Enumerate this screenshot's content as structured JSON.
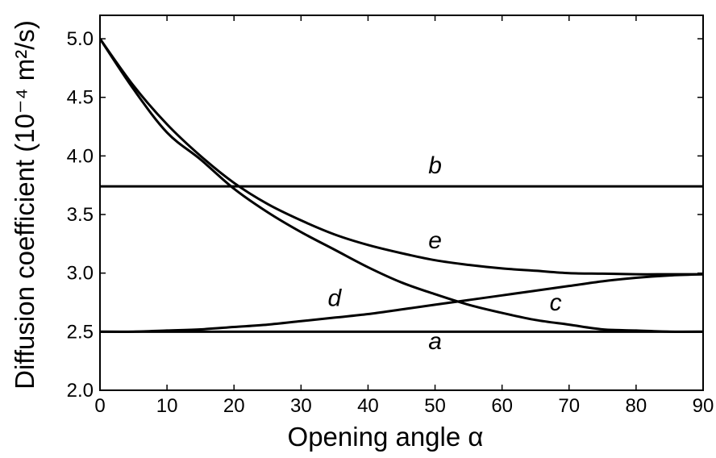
{
  "chart_data": {
    "type": "line",
    "xlabel": "Opening angle α",
    "ylabel": "Diffusion coefficient (10⁻⁴ m²/s)",
    "xlim": [
      0,
      90
    ],
    "ylim": [
      2.0,
      5.2
    ],
    "xticks": [
      0,
      10,
      20,
      30,
      40,
      50,
      60,
      70,
      80,
      90
    ],
    "xtick_labels": [
      "0",
      "10",
      "20",
      "30",
      "40",
      "50",
      "60",
      "70",
      "80",
      "90"
    ],
    "yticks": [
      2.0,
      2.5,
      3.0,
      3.5,
      4.0,
      4.5,
      5.0
    ],
    "ytick_labels": [
      "2.0",
      "2.5",
      "3.0",
      "3.5",
      "4.0",
      "4.5",
      "5.0"
    ],
    "grid": false,
    "legend": "none",
    "series": [
      {
        "name": "a",
        "label_at": [
          50,
          2.35
        ],
        "x": [
          0,
          90
        ],
        "y": [
          2.5,
          2.5
        ]
      },
      {
        "name": "b",
        "label_at": [
          50,
          3.85
        ],
        "x": [
          0,
          90
        ],
        "y": [
          3.74,
          3.74
        ]
      },
      {
        "name": "c",
        "label_at": [
          68,
          2.68
        ],
        "x": [
          0,
          5,
          10,
          15,
          20,
          25,
          30,
          35,
          40,
          45,
          50,
          55,
          60,
          65,
          70,
          75,
          80,
          85,
          90
        ],
        "y": [
          5.0,
          4.57,
          4.2,
          3.97,
          3.72,
          3.52,
          3.35,
          3.2,
          3.05,
          2.92,
          2.82,
          2.73,
          2.66,
          2.6,
          2.56,
          2.52,
          2.51,
          2.5,
          2.5
        ]
      },
      {
        "name": "d",
        "label_at": [
          35,
          2.72
        ],
        "x": [
          0,
          5,
          10,
          15,
          20,
          25,
          30,
          35,
          40,
          45,
          50,
          55,
          60,
          65,
          70,
          75,
          80,
          85,
          90
        ],
        "y": [
          2.5,
          2.5,
          2.51,
          2.52,
          2.54,
          2.56,
          2.59,
          2.62,
          2.65,
          2.69,
          2.73,
          2.77,
          2.81,
          2.85,
          2.89,
          2.93,
          2.96,
          2.98,
          2.99
        ]
      },
      {
        "name": "e",
        "label_at": [
          50,
          3.21
        ],
        "x": [
          0,
          5,
          10,
          15,
          20,
          25,
          30,
          35,
          40,
          45,
          50,
          55,
          60,
          65,
          70,
          75,
          80,
          85,
          90
        ],
        "y": [
          5.0,
          4.6,
          4.27,
          4.0,
          3.77,
          3.59,
          3.45,
          3.33,
          3.24,
          3.17,
          3.11,
          3.07,
          3.04,
          3.02,
          3.0,
          2.995,
          2.99,
          2.99,
          2.99
        ]
      }
    ]
  }
}
